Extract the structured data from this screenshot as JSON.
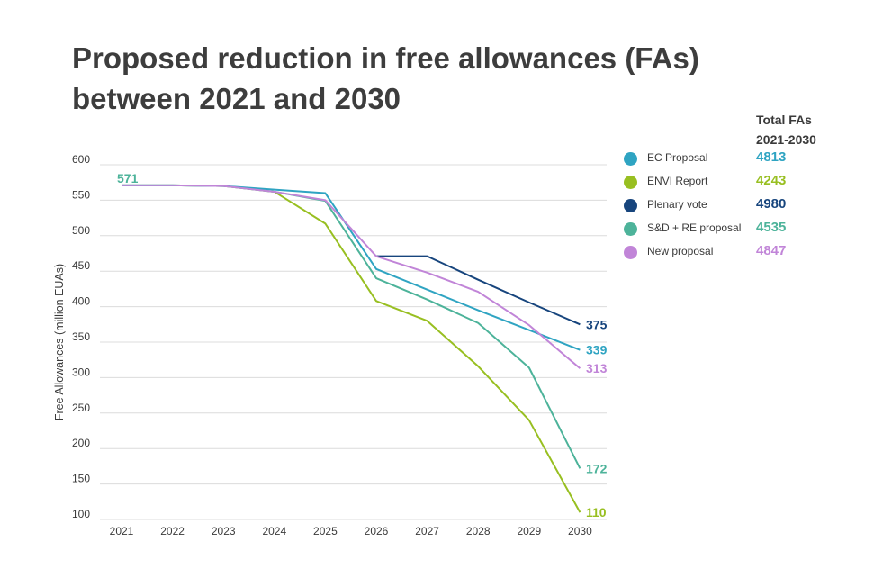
{
  "title_line1": "Proposed reduction in free allowances (FAs)",
  "title_line2": "between 2021 and 2030",
  "legend_header_line1": "Total FAs",
  "legend_header_line2": "2021-2030",
  "chart_data": {
    "type": "line",
    "ylabel": "Free Allowances (million EUAs)",
    "xlabel": "",
    "ylim": [
      100,
      600
    ],
    "yticks": [
      100,
      150,
      200,
      250,
      300,
      350,
      400,
      450,
      500,
      550,
      600
    ],
    "categories": [
      "2021",
      "2022",
      "2023",
      "2024",
      "2025",
      "2026",
      "2027",
      "2028",
      "2029",
      "2030"
    ],
    "grid": true,
    "start_label": "571",
    "series": [
      {
        "name": "EC Proposal",
        "color": "#2fa4c2",
        "total": "4813",
        "end_label": "339",
        "values": [
          571,
          571,
          570,
          565,
          560,
          453,
          424,
          395,
          367,
          339
        ]
      },
      {
        "name": "ENVI Report",
        "color": "#98bf21",
        "total": "4243",
        "end_label": "110",
        "values": [
          571,
          571,
          570,
          562,
          517,
          408,
          380,
          316,
          240,
          110
        ]
      },
      {
        "name": "Plenary vote",
        "color": "#17457d",
        "total": "4980",
        "end_label": "375",
        "values": [
          null,
          null,
          null,
          null,
          null,
          471,
          471,
          438,
          406,
          375
        ]
      },
      {
        "name": "S&D + RE proposal",
        "color": "#4db39a",
        "total": "4535",
        "end_label": "172",
        "values": [
          571,
          571,
          570,
          562,
          549,
          440,
          410,
          377,
          314,
          172
        ]
      },
      {
        "name": "New proposal",
        "color": "#c185d8",
        "total": "4847",
        "end_label": "313",
        "values": [
          571,
          571,
          570,
          562,
          550,
          471,
          448,
          421,
          374,
          313
        ]
      }
    ]
  }
}
